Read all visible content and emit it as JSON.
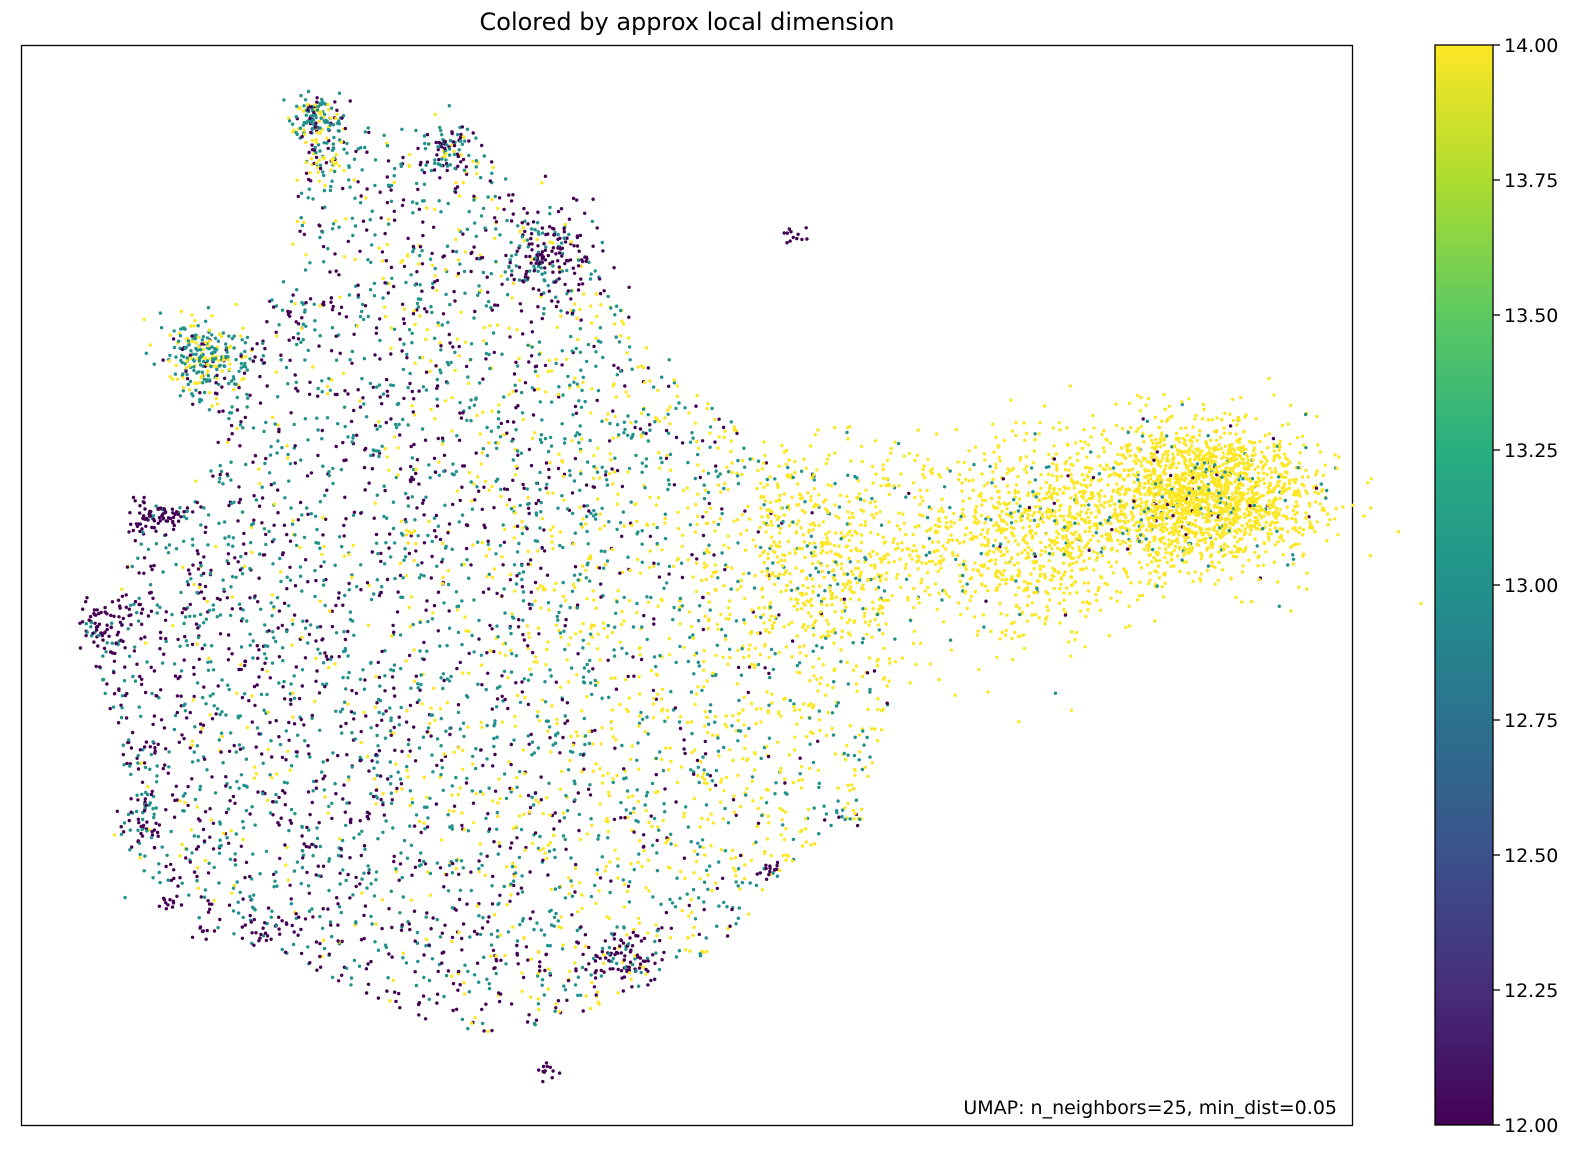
{
  "chart_data": {
    "type": "scatter",
    "title": "Colored by approx local dimension",
    "xlabel": "",
    "ylabel": "",
    "annotation": "UMAP: n_neighbors=25, min_dist=0.05",
    "colormap": "viridis",
    "colorbar": {
      "range": [
        12.0,
        14.0
      ],
      "ticks": [
        "12.00",
        "12.25",
        "12.50",
        "12.75",
        "13.00",
        "13.25",
        "13.50",
        "13.75",
        "14.00"
      ]
    },
    "axes": {
      "x_ticks_visible": false,
      "y_ticks_visible": false,
      "grid": false
    },
    "point_values": [
      12.0,
      13.0,
      14.0
    ],
    "colors": {
      "low": "#440154",
      "mid": "#21918c",
      "high": "#fde725"
    },
    "series": [
      {
        "value": 12.0,
        "approx_share": 0.25
      },
      {
        "value": 13.0,
        "approx_share": 0.35
      },
      {
        "value": 14.0,
        "approx_share": 0.4
      }
    ]
  }
}
